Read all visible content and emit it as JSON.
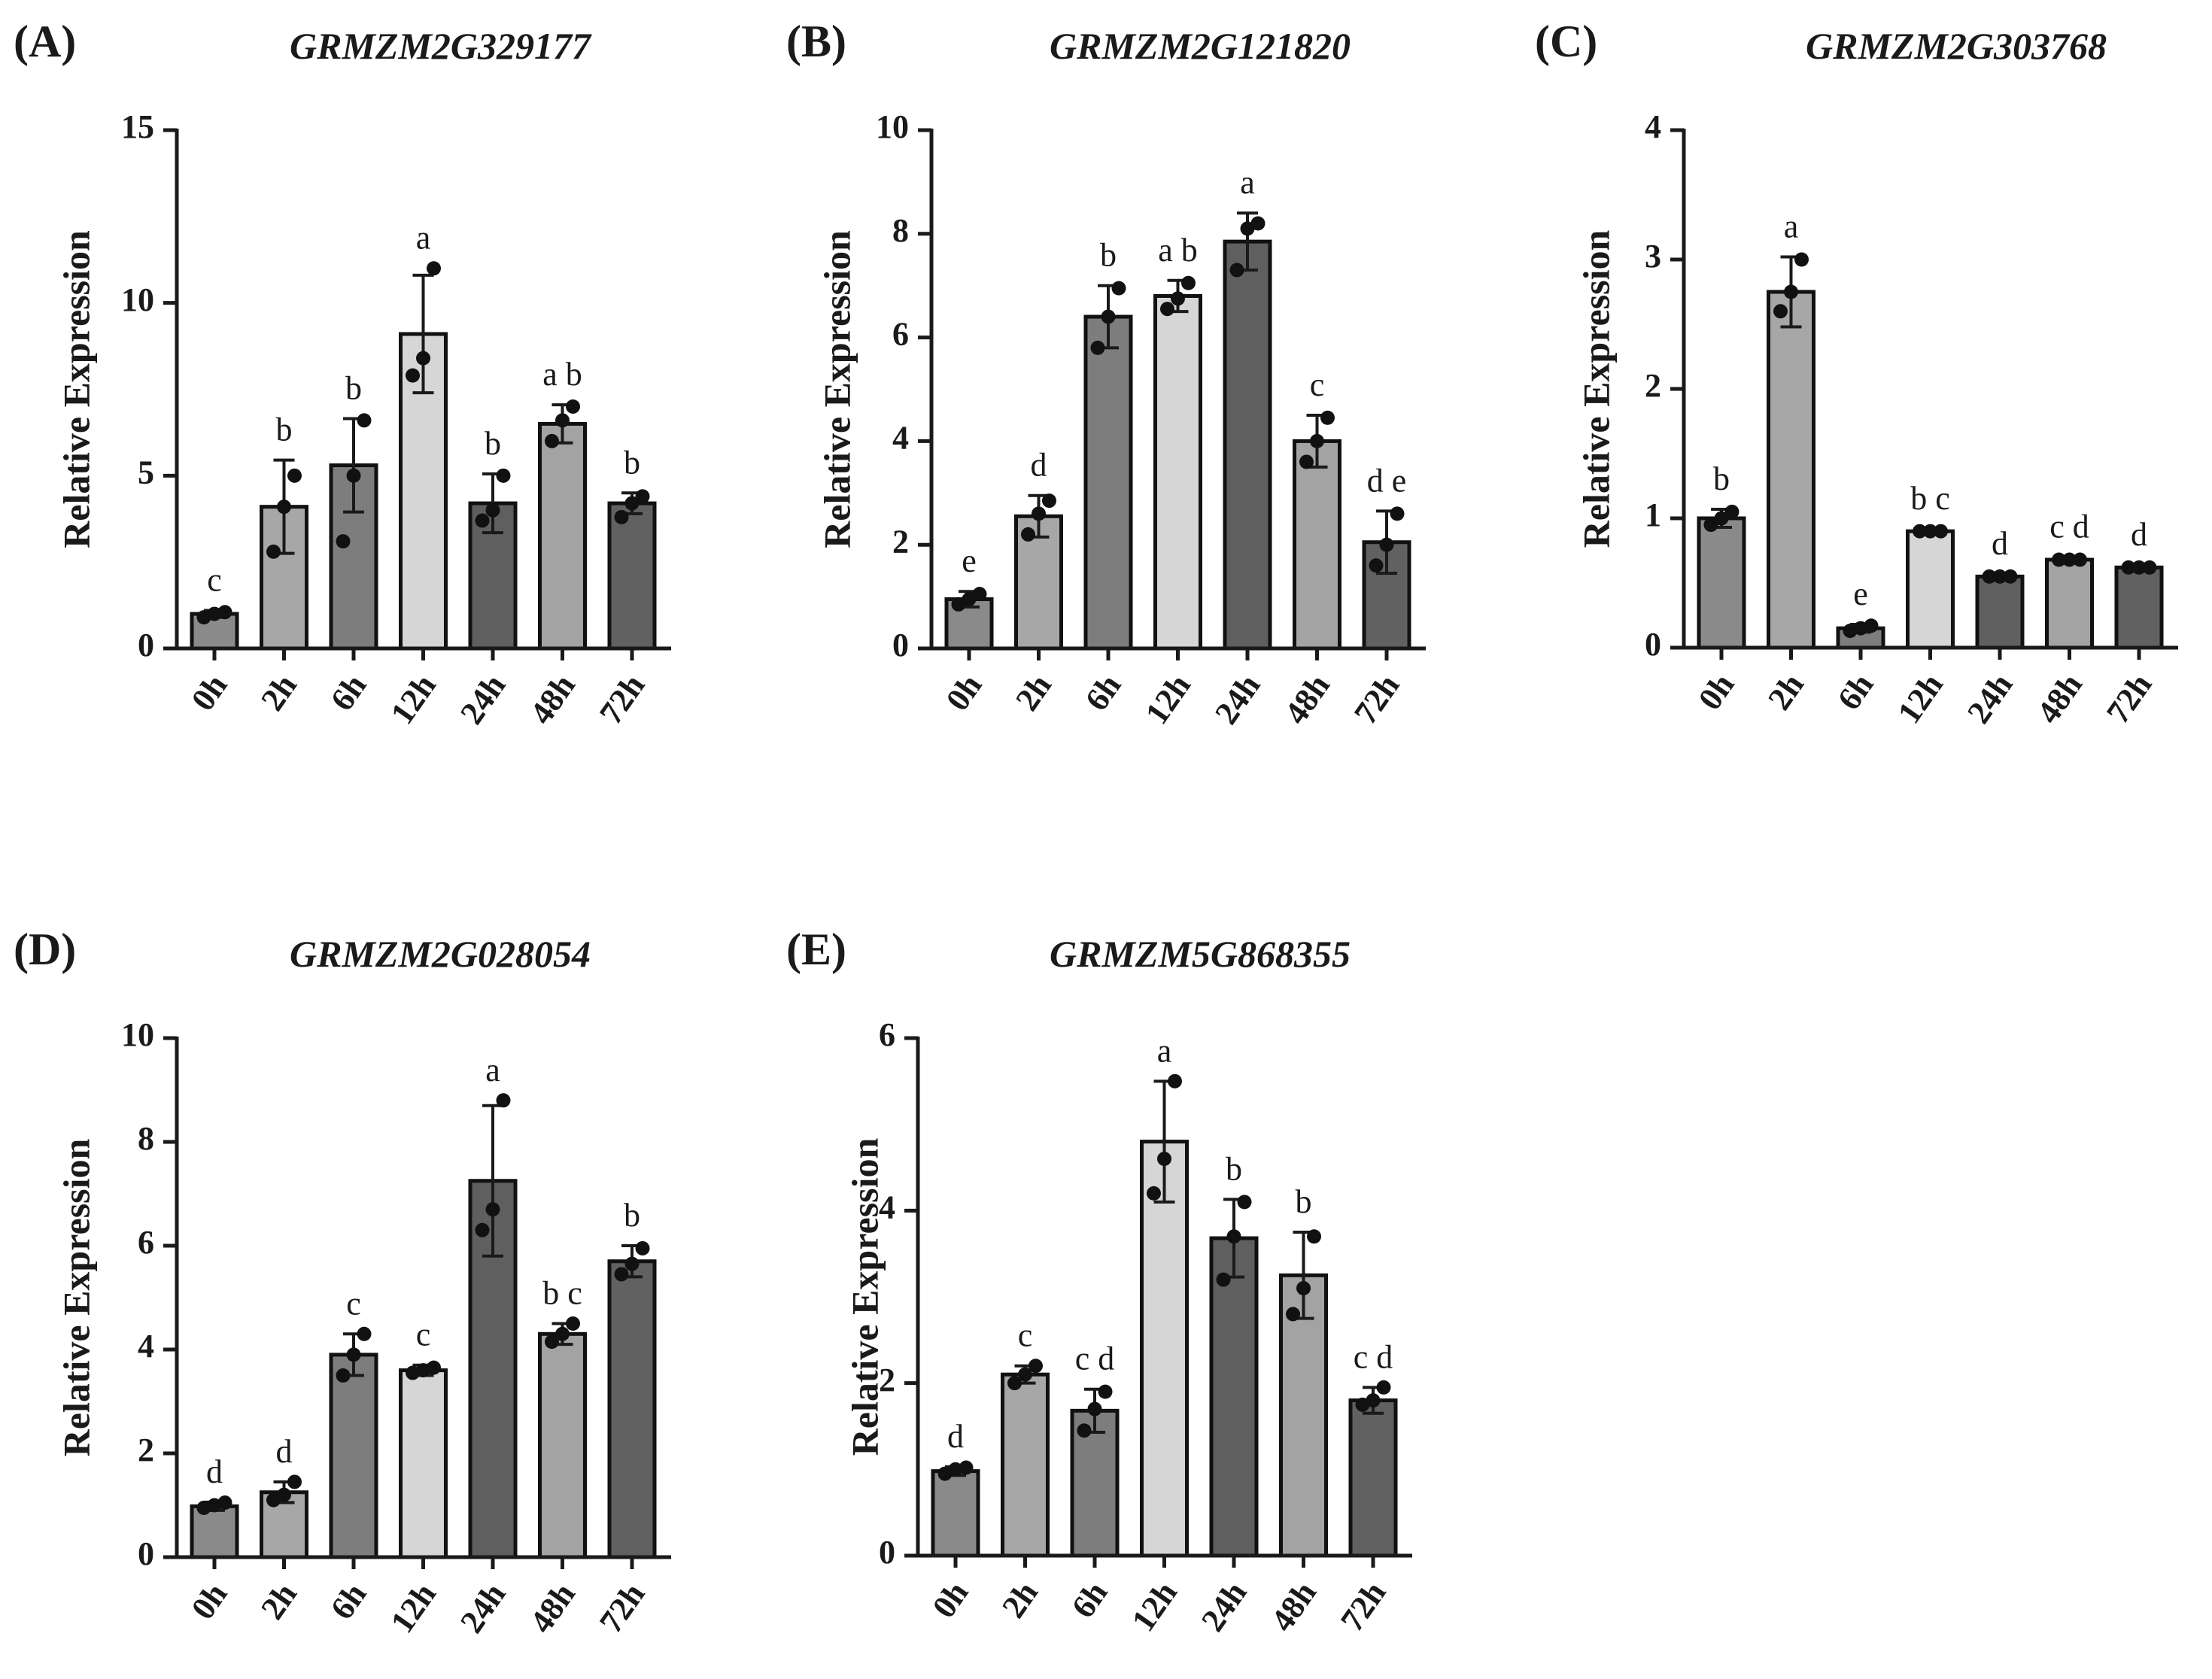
{
  "figure": {
    "colors": {
      "axis": "#1a1a1a",
      "bar_stroke": "#111111",
      "dot": "#111111",
      "text": "#1a1a1a",
      "bar_fills": [
        "#8a8a8a",
        "#a7a7a7",
        "#7d7d7d",
        "#d6d6d6",
        "#5f5f5f",
        "#a3a3a3",
        "#616161"
      ]
    }
  },
  "chart_data": [
    {
      "id": "A",
      "letter": "(A)",
      "title": "GRMZM2G329177",
      "type": "bar",
      "ylabel": "Relative Expression",
      "xlabel": "",
      "ylim": [
        0,
        15
      ],
      "yticks": [
        0,
        5,
        10,
        15
      ],
      "categories": [
        "0h",
        "2h",
        "6h",
        "12h",
        "24h",
        "48h",
        "72h"
      ],
      "values": [
        1.0,
        4.1,
        5.3,
        9.1,
        4.2,
        6.5,
        4.2
      ],
      "errors": [
        0.1,
        1.35,
        1.35,
        1.7,
        0.85,
        0.55,
        0.3
      ],
      "points": [
        [
          0.9,
          1.0,
          1.05
        ],
        [
          2.8,
          4.1,
          5.0
        ],
        [
          3.1,
          5.0,
          6.6
        ],
        [
          7.9,
          8.4,
          11.0
        ],
        [
          3.7,
          4.0,
          5.0
        ],
        [
          6.0,
          6.6,
          7.0
        ],
        [
          3.8,
          4.2,
          4.4
        ]
      ],
      "letters": [
        "c",
        "b",
        "b",
        "a",
        "b",
        "a b",
        "b"
      ]
    },
    {
      "id": "B",
      "letter": "(B)",
      "title": "GRMZM2G121820",
      "type": "bar",
      "ylabel": "Relative Expression",
      "xlabel": "",
      "ylim": [
        0,
        10
      ],
      "yticks": [
        0,
        2,
        4,
        6,
        8,
        10
      ],
      "categories": [
        "0h",
        "2h",
        "6h",
        "12h",
        "24h",
        "48h",
        "72h"
      ],
      "values": [
        0.95,
        2.55,
        6.4,
        6.8,
        7.85,
        4.0,
        2.05
      ],
      "errors": [
        0.15,
        0.4,
        0.6,
        0.3,
        0.55,
        0.5,
        0.6
      ],
      "points": [
        [
          0.85,
          0.95,
          1.05
        ],
        [
          2.2,
          2.6,
          2.85
        ],
        [
          5.8,
          6.4,
          6.95
        ],
        [
          6.55,
          6.75,
          7.05
        ],
        [
          7.3,
          8.1,
          8.2
        ],
        [
          3.6,
          4.0,
          4.45
        ],
        [
          1.6,
          2.0,
          2.6
        ]
      ],
      "letters": [
        "e",
        "d",
        "b",
        "a b",
        "a",
        "c",
        "d e"
      ]
    },
    {
      "id": "C",
      "letter": "(C)",
      "title": "GRMZM2G303768",
      "type": "bar",
      "ylabel": "Relative Expression",
      "xlabel": "",
      "ylim": [
        0,
        4
      ],
      "yticks": [
        0,
        1,
        2,
        3,
        4
      ],
      "categories": [
        "0h",
        "2h",
        "6h",
        "12h",
        "24h",
        "48h",
        "72h"
      ],
      "values": [
        1.0,
        2.75,
        0.15,
        0.9,
        0.55,
        0.68,
        0.62
      ],
      "errors": [
        0.07,
        0.27,
        0.03,
        0.02,
        0.02,
        0.02,
        0.02
      ],
      "points": [
        [
          0.95,
          1.0,
          1.05
        ],
        [
          2.6,
          2.75,
          3.0
        ],
        [
          0.13,
          0.15,
          0.17
        ],
        [
          0.9,
          0.9,
          0.9
        ],
        [
          0.55,
          0.55,
          0.55
        ],
        [
          0.68,
          0.68,
          0.68
        ],
        [
          0.62,
          0.62,
          0.62
        ]
      ],
      "letters": [
        "b",
        "a",
        "e",
        "b c",
        "d",
        "c d",
        "d"
      ]
    },
    {
      "id": "D",
      "letter": "(D)",
      "title": "GRMZM2G028054",
      "type": "bar",
      "ylabel": "Relative Expression",
      "xlabel": "",
      "ylim": [
        0,
        10
      ],
      "yticks": [
        0,
        2,
        4,
        6,
        8,
        10
      ],
      "categories": [
        "0h",
        "2h",
        "6h",
        "12h",
        "24h",
        "48h",
        "72h"
      ],
      "values": [
        0.98,
        1.25,
        3.9,
        3.6,
        7.25,
        4.3,
        5.7
      ],
      "errors": [
        0.08,
        0.2,
        0.4,
        0.1,
        1.45,
        0.2,
        0.3
      ],
      "points": [
        [
          0.95,
          1.0,
          1.05
        ],
        [
          1.1,
          1.2,
          1.45
        ],
        [
          3.5,
          3.9,
          4.3
        ],
        [
          3.55,
          3.6,
          3.65
        ],
        [
          6.3,
          6.7,
          8.8
        ],
        [
          4.15,
          4.3,
          4.5
        ],
        [
          5.45,
          5.65,
          5.95
        ]
      ],
      "letters": [
        "d",
        "d",
        "c",
        "c",
        "a",
        "b c",
        "b"
      ]
    },
    {
      "id": "E",
      "letter": "(E)",
      "title": "GRMZM5G868355",
      "type": "bar",
      "ylabel": "Relative Expression",
      "xlabel": "",
      "ylim": [
        0,
        6
      ],
      "yticks": [
        0,
        2,
        4,
        6
      ],
      "categories": [
        "0h",
        "2h",
        "6h",
        "12h",
        "24h",
        "48h",
        "72h"
      ],
      "values": [
        0.98,
        2.1,
        1.68,
        4.8,
        3.68,
        3.25,
        1.8
      ],
      "errors": [
        0.05,
        0.1,
        0.25,
        0.7,
        0.45,
        0.5,
        0.15
      ],
      "points": [
        [
          0.95,
          1.0,
          1.02
        ],
        [
          2.0,
          2.1,
          2.2
        ],
        [
          1.45,
          1.7,
          1.9
        ],
        [
          4.2,
          4.6,
          5.5
        ],
        [
          3.2,
          3.7,
          4.1
        ],
        [
          2.8,
          3.1,
          3.7
        ],
        [
          1.75,
          1.8,
          1.95
        ]
      ],
      "letters": [
        "d",
        "c",
        "c d",
        "a",
        "b",
        "b",
        "c d"
      ]
    }
  ]
}
